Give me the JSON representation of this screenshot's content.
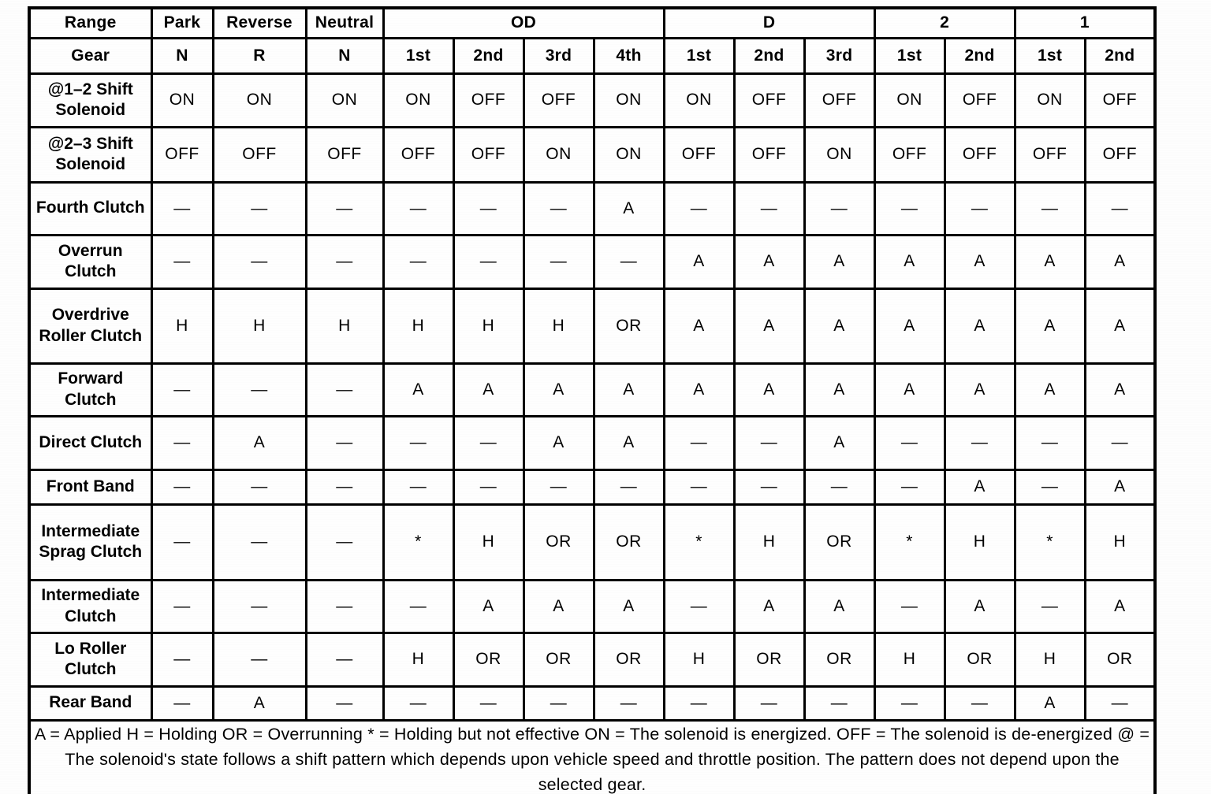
{
  "header": {
    "range_label": "Range",
    "gear_label": "Gear",
    "groups": [
      {
        "label": "Park",
        "gears": [
          "N"
        ]
      },
      {
        "label": "Reverse",
        "gears": [
          "R"
        ]
      },
      {
        "label": "Neutral",
        "gears": [
          "N"
        ]
      },
      {
        "label": "OD",
        "gears": [
          "1st",
          "2nd",
          "3rd",
          "4th"
        ]
      },
      {
        "label": "D",
        "gears": [
          "1st",
          "2nd",
          "3rd"
        ]
      },
      {
        "label": "2",
        "gears": [
          "1st",
          "2nd"
        ]
      },
      {
        "label": "1",
        "gears": [
          "1st",
          "2nd"
        ]
      }
    ]
  },
  "rows": [
    {
      "label": "@1–2 Shift Solenoid",
      "values": [
        "ON",
        "ON",
        "ON",
        "ON",
        "OFF",
        "OFF",
        "ON",
        "ON",
        "OFF",
        "OFF",
        "ON",
        "OFF",
        "ON",
        "OFF"
      ]
    },
    {
      "label": "@2–3 Shift Solenoid",
      "values": [
        "OFF",
        "OFF",
        "OFF",
        "OFF",
        "OFF",
        "ON",
        "ON",
        "OFF",
        "OFF",
        "ON",
        "OFF",
        "OFF",
        "OFF",
        "OFF"
      ]
    },
    {
      "label": "Fourth Clutch",
      "values": [
        "—",
        "—",
        "—",
        "—",
        "—",
        "—",
        "A",
        "—",
        "—",
        "—",
        "—",
        "—",
        "—",
        "—"
      ]
    },
    {
      "label": "Overrun Clutch",
      "values": [
        "—",
        "—",
        "—",
        "—",
        "—",
        "—",
        "—",
        "A",
        "A",
        "A",
        "A",
        "A",
        "A",
        "A"
      ]
    },
    {
      "label": "Overdrive Roller Clutch",
      "values": [
        "H",
        "H",
        "H",
        "H",
        "H",
        "H",
        "OR",
        "A",
        "A",
        "A",
        "A",
        "A",
        "A",
        "A"
      ]
    },
    {
      "label": "Forward Clutch",
      "values": [
        "—",
        "—",
        "—",
        "A",
        "A",
        "A",
        "A",
        "A",
        "A",
        "A",
        "A",
        "A",
        "A",
        "A"
      ]
    },
    {
      "label": "Direct Clutch",
      "values": [
        "—",
        "A",
        "—",
        "—",
        "—",
        "A",
        "A",
        "—",
        "—",
        "A",
        "—",
        "—",
        "—",
        "—"
      ]
    },
    {
      "label": "Front Band",
      "values": [
        "—",
        "—",
        "—",
        "—",
        "—",
        "—",
        "—",
        "—",
        "—",
        "—",
        "—",
        "A",
        "—",
        "A"
      ]
    },
    {
      "label": "Intermediate Sprag Clutch",
      "values": [
        "—",
        "—",
        "—",
        "*",
        "H",
        "OR",
        "OR",
        "*",
        "H",
        "OR",
        "*",
        "H",
        "*",
        "H"
      ]
    },
    {
      "label": "Intermediate Clutch",
      "values": [
        "—",
        "—",
        "—",
        "—",
        "A",
        "A",
        "A",
        "—",
        "A",
        "A",
        "—",
        "A",
        "—",
        "A"
      ]
    },
    {
      "label": "Lo Roller Clutch",
      "values": [
        "—",
        "—",
        "—",
        "H",
        "OR",
        "OR",
        "OR",
        "H",
        "OR",
        "OR",
        "H",
        "OR",
        "H",
        "OR"
      ]
    },
    {
      "label": "Rear Band",
      "values": [
        "—",
        "A",
        "—",
        "—",
        "—",
        "—",
        "—",
        "—",
        "—",
        "—",
        "—",
        "—",
        "A",
        "—"
      ]
    }
  ],
  "legend": "A = Applied H = Holding OR = Overrunning * = Holding but not effective ON = The solenoid is energized. OFF = The solenoid is de-energized @ = The solenoid's state follows a shift pattern which depends upon vehicle speed and throttle position. The pattern does not depend upon the selected gear."
}
